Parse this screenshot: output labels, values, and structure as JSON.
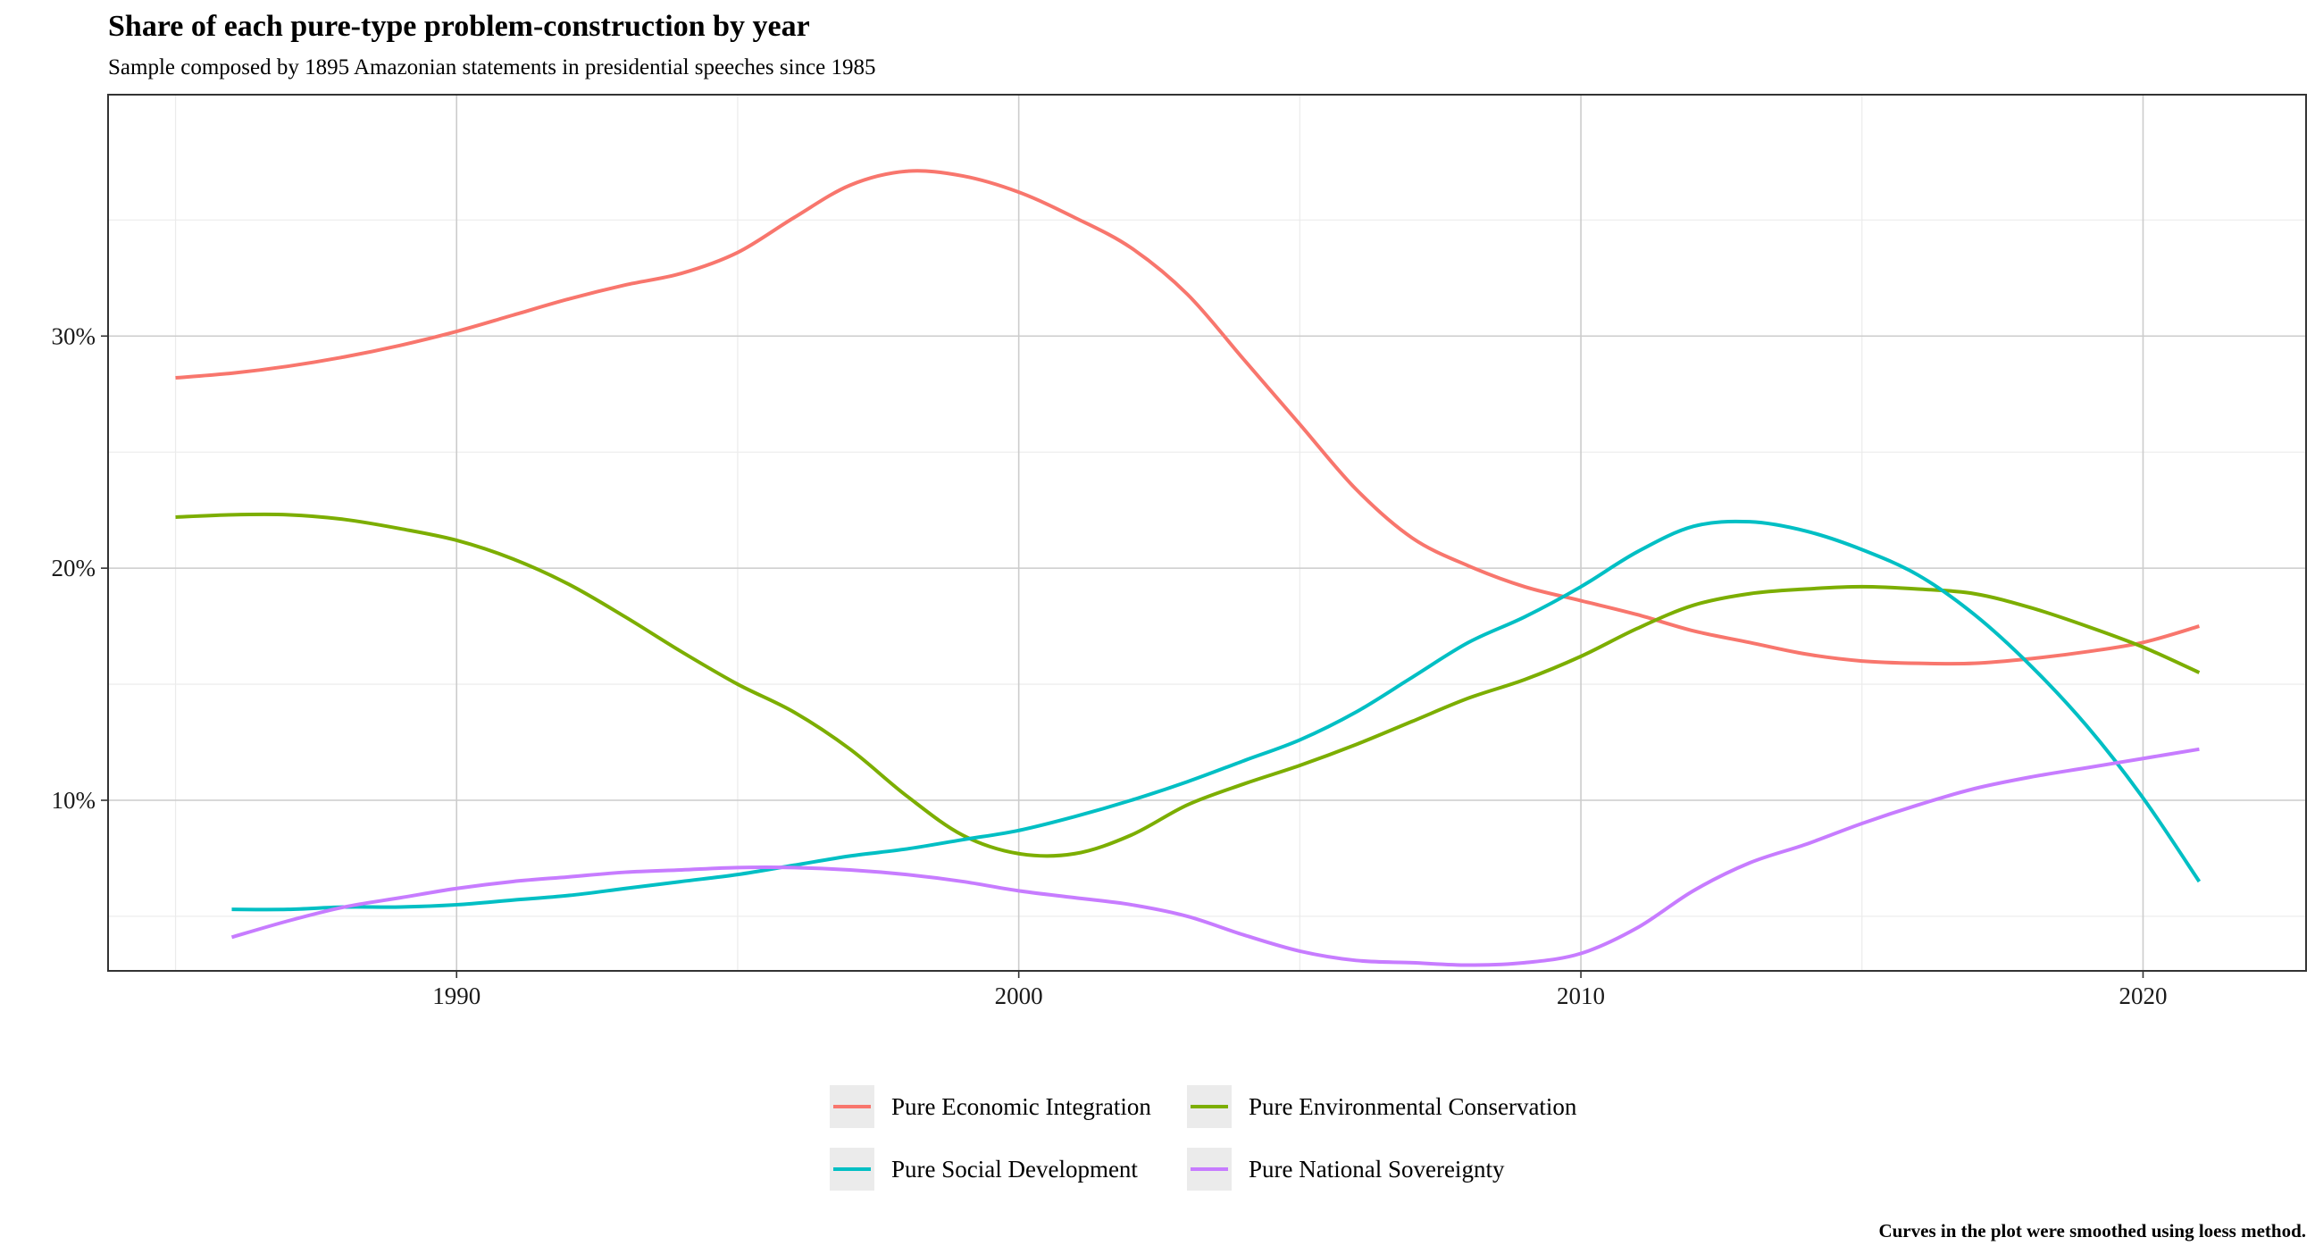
{
  "chart_data": {
    "type": "line",
    "title": "Share of each pure-type problem-construction by year",
    "subtitle": "Sample composed by 1895 Amazonian statements in presidential speeches since 1985",
    "caption": "Curves in the plot were smoothed using loess method.",
    "xlabel": "",
    "ylabel": "",
    "xlim": [
      1983.8,
      2022.9
    ],
    "ylim": [
      0.0265,
      0.404
    ],
    "x_ticks": [
      {
        "value": 1990,
        "label": "1990"
      },
      {
        "value": 2000,
        "label": "2000"
      },
      {
        "value": 2010,
        "label": "2010"
      },
      {
        "value": 2020,
        "label": "2020"
      }
    ],
    "x_minor_ticks": [
      1985,
      1995,
      2005,
      2015
    ],
    "y_ticks": [
      {
        "value": 0.1,
        "label": "10%"
      },
      {
        "value": 0.2,
        "label": "20%"
      },
      {
        "value": 0.3,
        "label": "30%"
      }
    ],
    "y_minor_ticks": [
      0.05,
      0.15,
      0.25,
      0.35
    ],
    "grid": true,
    "legend_position": "bottom",
    "series": [
      {
        "name": "Pure Economic Integration",
        "color": "#F8766D",
        "points": [
          [
            1985,
            0.282
          ],
          [
            1986,
            0.284
          ],
          [
            1987,
            0.287
          ],
          [
            1988,
            0.291
          ],
          [
            1989,
            0.296
          ],
          [
            1990,
            0.302
          ],
          [
            1991,
            0.309
          ],
          [
            1992,
            0.316
          ],
          [
            1993,
            0.322
          ],
          [
            1994,
            0.327
          ],
          [
            1995,
            0.336
          ],
          [
            1996,
            0.351
          ],
          [
            1997,
            0.365
          ],
          [
            1998,
            0.371
          ],
          [
            1999,
            0.369
          ],
          [
            2000,
            0.362
          ],
          [
            2001,
            0.351
          ],
          [
            2002,
            0.338
          ],
          [
            2003,
            0.318
          ],
          [
            2004,
            0.29
          ],
          [
            2005,
            0.262
          ],
          [
            2006,
            0.234
          ],
          [
            2007,
            0.213
          ],
          [
            2008,
            0.201
          ],
          [
            2009,
            0.192
          ],
          [
            2010,
            0.186
          ],
          [
            2011,
            0.18
          ],
          [
            2012,
            0.173
          ],
          [
            2013,
            0.168
          ],
          [
            2014,
            0.163
          ],
          [
            2015,
            0.16
          ],
          [
            2016,
            0.159
          ],
          [
            2017,
            0.159
          ],
          [
            2018,
            0.161
          ],
          [
            2019,
            0.164
          ],
          [
            2020,
            0.168
          ],
          [
            2021,
            0.175
          ]
        ]
      },
      {
        "name": "Pure Environmental Conservation",
        "color": "#7CAE00",
        "points": [
          [
            1985,
            0.222
          ],
          [
            1986,
            0.223
          ],
          [
            1987,
            0.223
          ],
          [
            1988,
            0.221
          ],
          [
            1989,
            0.217
          ],
          [
            1990,
            0.212
          ],
          [
            1991,
            0.204
          ],
          [
            1992,
            0.193
          ],
          [
            1993,
            0.179
          ],
          [
            1994,
            0.164
          ],
          [
            1995,
            0.15
          ],
          [
            1996,
            0.138
          ],
          [
            1997,
            0.122
          ],
          [
            1998,
            0.102
          ],
          [
            1999,
            0.085
          ],
          [
            2000,
            0.077
          ],
          [
            2001,
            0.077
          ],
          [
            2002,
            0.085
          ],
          [
            2003,
            0.098
          ],
          [
            2004,
            0.107
          ],
          [
            2005,
            0.115
          ],
          [
            2006,
            0.124
          ],
          [
            2007,
            0.134
          ],
          [
            2008,
            0.144
          ],
          [
            2009,
            0.152
          ],
          [
            2010,
            0.162
          ],
          [
            2011,
            0.174
          ],
          [
            2012,
            0.184
          ],
          [
            2013,
            0.189
          ],
          [
            2014,
            0.191
          ],
          [
            2015,
            0.192
          ],
          [
            2016,
            0.191
          ],
          [
            2017,
            0.189
          ],
          [
            2018,
            0.183
          ],
          [
            2019,
            0.175
          ],
          [
            2020,
            0.166
          ],
          [
            2021,
            0.155
          ]
        ]
      },
      {
        "name": "Pure Social Development",
        "color": "#00BFC4",
        "points": [
          [
            1986,
            0.053
          ],
          [
            1987,
            0.053
          ],
          [
            1988,
            0.054
          ],
          [
            1989,
            0.054
          ],
          [
            1990,
            0.055
          ],
          [
            1991,
            0.057
          ],
          [
            1992,
            0.059
          ],
          [
            1993,
            0.062
          ],
          [
            1994,
            0.065
          ],
          [
            1995,
            0.068
          ],
          [
            1996,
            0.072
          ],
          [
            1997,
            0.076
          ],
          [
            1998,
            0.079
          ],
          [
            1999,
            0.083
          ],
          [
            2000,
            0.087
          ],
          [
            2001,
            0.093
          ],
          [
            2002,
            0.1
          ],
          [
            2003,
            0.108
          ],
          [
            2004,
            0.117
          ],
          [
            2005,
            0.126
          ],
          [
            2006,
            0.138
          ],
          [
            2007,
            0.153
          ],
          [
            2008,
            0.168
          ],
          [
            2009,
            0.179
          ],
          [
            2010,
            0.192
          ],
          [
            2011,
            0.207
          ],
          [
            2012,
            0.218
          ],
          [
            2013,
            0.22
          ],
          [
            2014,
            0.216
          ],
          [
            2015,
            0.208
          ],
          [
            2016,
            0.197
          ],
          [
            2017,
            0.18
          ],
          [
            2018,
            0.158
          ],
          [
            2019,
            0.132
          ],
          [
            2020,
            0.101
          ],
          [
            2021,
            0.065
          ]
        ]
      },
      {
        "name": "Pure National Sovereignty",
        "color": "#C77CFF",
        "points": [
          [
            1986,
            0.041
          ],
          [
            1987,
            0.048
          ],
          [
            1988,
            0.054
          ],
          [
            1989,
            0.058
          ],
          [
            1990,
            0.062
          ],
          [
            1991,
            0.065
          ],
          [
            1992,
            0.067
          ],
          [
            1993,
            0.069
          ],
          [
            1994,
            0.07
          ],
          [
            1995,
            0.071
          ],
          [
            1996,
            0.071
          ],
          [
            1997,
            0.07
          ],
          [
            1998,
            0.068
          ],
          [
            1999,
            0.065
          ],
          [
            2000,
            0.061
          ],
          [
            2001,
            0.058
          ],
          [
            2002,
            0.055
          ],
          [
            2003,
            0.05
          ],
          [
            2004,
            0.042
          ],
          [
            2005,
            0.035
          ],
          [
            2006,
            0.031
          ],
          [
            2007,
            0.03
          ],
          [
            2008,
            0.029
          ],
          [
            2009,
            0.03
          ],
          [
            2010,
            0.034
          ],
          [
            2011,
            0.045
          ],
          [
            2012,
            0.061
          ],
          [
            2013,
            0.073
          ],
          [
            2014,
            0.081
          ],
          [
            2015,
            0.09
          ],
          [
            2016,
            0.098
          ],
          [
            2017,
            0.105
          ],
          [
            2018,
            0.11
          ],
          [
            2019,
            0.114
          ],
          [
            2020,
            0.118
          ],
          [
            2021,
            0.122
          ]
        ]
      }
    ]
  }
}
